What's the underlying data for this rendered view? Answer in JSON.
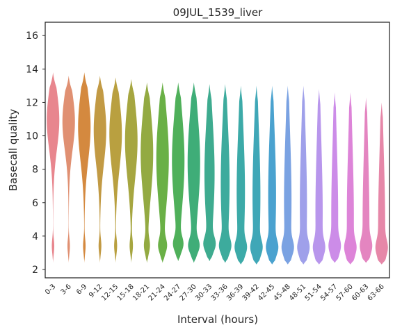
{
  "chart_data": {
    "type": "violin",
    "title": "09JUL_1539_liver",
    "xlabel": "Interval (hours)",
    "ylabel": "Basecall quality",
    "ylim": [
      1.5,
      16.8
    ],
    "yticks": [
      2,
      4,
      6,
      8,
      10,
      12,
      14,
      16
    ],
    "grid": false,
    "categories": [
      "0-3",
      "3-6",
      "6-9",
      "9-12",
      "12-15",
      "15-18",
      "18-21",
      "21-24",
      "24-27",
      "27-30",
      "30-33",
      "33-36",
      "36-39",
      "39-42",
      "42-45",
      "45-48",
      "48-51",
      "51-54",
      "54-57",
      "57-60",
      "60-63",
      "63-66"
    ],
    "colors": [
      "#e8868e",
      "#e09072",
      "#d4893f",
      "#c29a44",
      "#b9a040",
      "#a6a640",
      "#93aa42",
      "#6ab046",
      "#4fb05a",
      "#3fad78",
      "#3eab8f",
      "#3dab9d",
      "#3caaa8",
      "#3fa7b7",
      "#4aa2cf",
      "#7aa2e2",
      "#9fa0ea",
      "#b896ec",
      "#cc8ce8",
      "#dd84d8",
      "#e485c0",
      "#e687a8"
    ],
    "series_stats": [
      {
        "min": 2.4,
        "max": 13.8,
        "p25": 6.5,
        "median": 9.6,
        "p75": 11.0
      },
      {
        "min": 2.4,
        "max": 13.6,
        "p25": 6.2,
        "median": 9.3,
        "p75": 10.9
      },
      {
        "min": 2.4,
        "max": 13.8,
        "p25": 5.6,
        "median": 8.9,
        "p75": 10.6
      },
      {
        "min": 2.4,
        "max": 13.6,
        "p25": 5.2,
        "median": 8.5,
        "p75": 10.4
      },
      {
        "min": 2.4,
        "max": 13.5,
        "p25": 4.9,
        "median": 8.2,
        "p75": 10.2
      },
      {
        "min": 2.4,
        "max": 13.4,
        "p25": 4.6,
        "median": 7.8,
        "p75": 9.8
      },
      {
        "min": 2.4,
        "max": 13.2,
        "p25": 4.0,
        "median": 6.6,
        "p75": 9.1
      },
      {
        "min": 2.4,
        "max": 13.2,
        "p25": 3.7,
        "median": 5.8,
        "p75": 8.8
      },
      {
        "min": 2.5,
        "max": 13.2,
        "p25": 3.6,
        "median": 5.5,
        "p75": 8.7
      },
      {
        "min": 2.4,
        "max": 13.2,
        "p25": 3.6,
        "median": 5.3,
        "p75": 8.6
      },
      {
        "min": 2.5,
        "max": 13.1,
        "p25": 3.5,
        "median": 4.8,
        "p75": 8.0
      },
      {
        "min": 2.4,
        "max": 13.1,
        "p25": 3.4,
        "median": 4.5,
        "p75": 7.5
      },
      {
        "min": 2.3,
        "max": 13.0,
        "p25": 3.3,
        "median": 4.3,
        "p75": 7.0
      },
      {
        "min": 2.3,
        "max": 13.0,
        "p25": 3.3,
        "median": 4.2,
        "p75": 6.8
      },
      {
        "min": 2.3,
        "max": 13.0,
        "p25": 3.3,
        "median": 4.2,
        "p75": 6.8
      },
      {
        "min": 2.3,
        "max": 13.0,
        "p25": 3.3,
        "median": 4.1,
        "p75": 6.5
      },
      {
        "min": 2.3,
        "max": 13.0,
        "p25": 3.3,
        "median": 4.0,
        "p75": 6.2
      },
      {
        "min": 2.3,
        "max": 12.8,
        "p25": 3.2,
        "median": 3.9,
        "p75": 5.8
      },
      {
        "min": 2.4,
        "max": 12.6,
        "p25": 3.2,
        "median": 3.8,
        "p75": 5.6
      },
      {
        "min": 2.3,
        "max": 12.6,
        "p25": 3.2,
        "median": 3.8,
        "p75": 5.5
      },
      {
        "min": 2.4,
        "max": 12.3,
        "p25": 3.2,
        "median": 3.7,
        "p75": 5.2
      },
      {
        "min": 2.3,
        "max": 12.0,
        "p25": 3.1,
        "median": 3.6,
        "p75": 4.9
      }
    ]
  }
}
